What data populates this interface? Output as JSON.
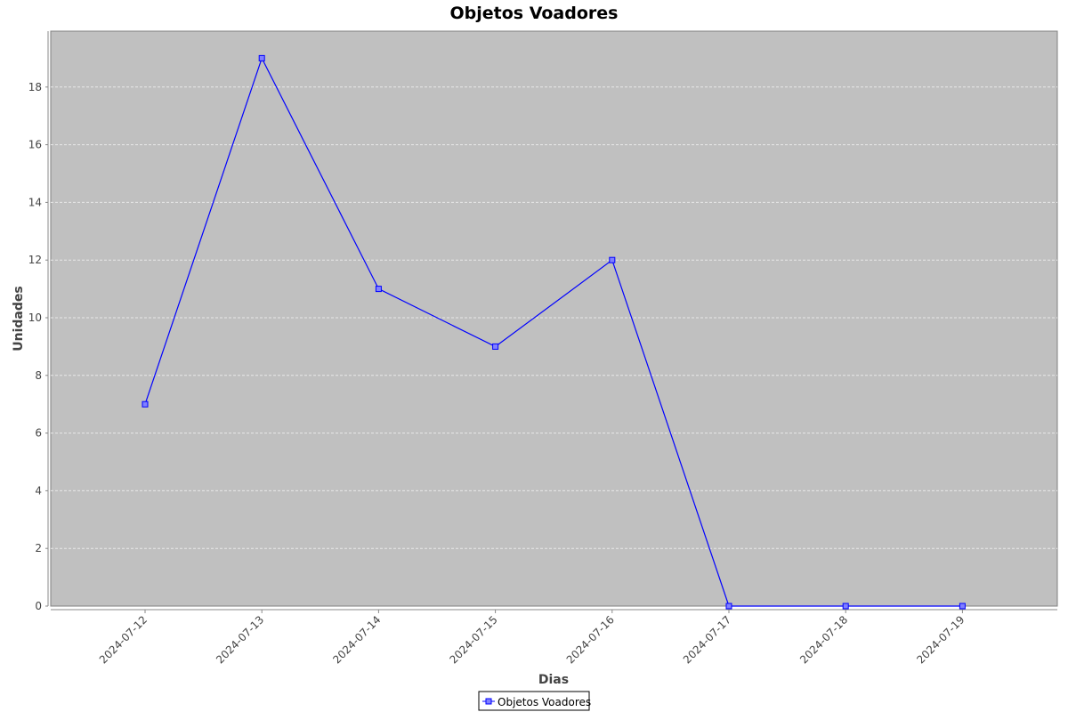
{
  "chart_data": {
    "type": "line",
    "title": "Objetos Voadores",
    "xlabel": "Dias",
    "ylabel": "Unidades",
    "categories": [
      "2024-07-12",
      "2024-07-13",
      "2024-07-14",
      "2024-07-15",
      "2024-07-16",
      "2024-07-17",
      "2024-07-18",
      "2024-07-19"
    ],
    "series": [
      {
        "name": "Objetos Voadores",
        "values": [
          7,
          19,
          11,
          9,
          12,
          0,
          0,
          0
        ],
        "color": "#0000ff"
      }
    ],
    "ylim": [
      0,
      20
    ],
    "yticks": [
      0,
      2,
      4,
      6,
      8,
      10,
      12,
      14,
      16,
      18
    ],
    "grid": true,
    "legend_position": "bottom-center",
    "colors": {
      "plot_background": "#c0c0c0",
      "gridline": "#e8e8e8",
      "axis_line": "#888888"
    }
  }
}
